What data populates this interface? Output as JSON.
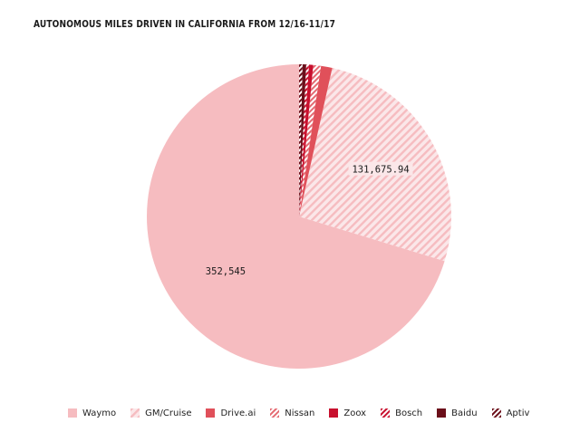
{
  "chart_data": {
    "type": "pie",
    "title": "AUTONOMOUS MILES DRIVEN IN CALIFORNIA FROM 12/16-11/17",
    "legend_position": "bottom",
    "series": [
      {
        "name": "Waymo",
        "value": 352545,
        "color": "#f6bcc0",
        "pattern": "solid",
        "label": "352,545"
      },
      {
        "name": "GM/Cruise",
        "value": 131675.94,
        "color": "#f6bcc0",
        "pattern": "hatch-light",
        "label": "131,675.94"
      },
      {
        "name": "Drive.ai",
        "value": 6000,
        "color": "#e0505a",
        "pattern": "solid",
        "label": ""
      },
      {
        "name": "Nissan",
        "value": 4100,
        "color": "#e46a72",
        "pattern": "hatch",
        "label": ""
      },
      {
        "name": "Zoox",
        "value": 2250,
        "color": "#c8102e",
        "pattern": "solid",
        "label": ""
      },
      {
        "name": "Bosch",
        "value": 1450,
        "color": "#c8102e",
        "pattern": "hatch",
        "label": ""
      },
      {
        "name": "Baidu",
        "value": 1950,
        "color": "#6b0f1a",
        "pattern": "solid",
        "label": ""
      },
      {
        "name": "Aptiv",
        "value": 1800,
        "color": "#6b0f1a",
        "pattern": "hatch",
        "label": ""
      }
    ]
  }
}
